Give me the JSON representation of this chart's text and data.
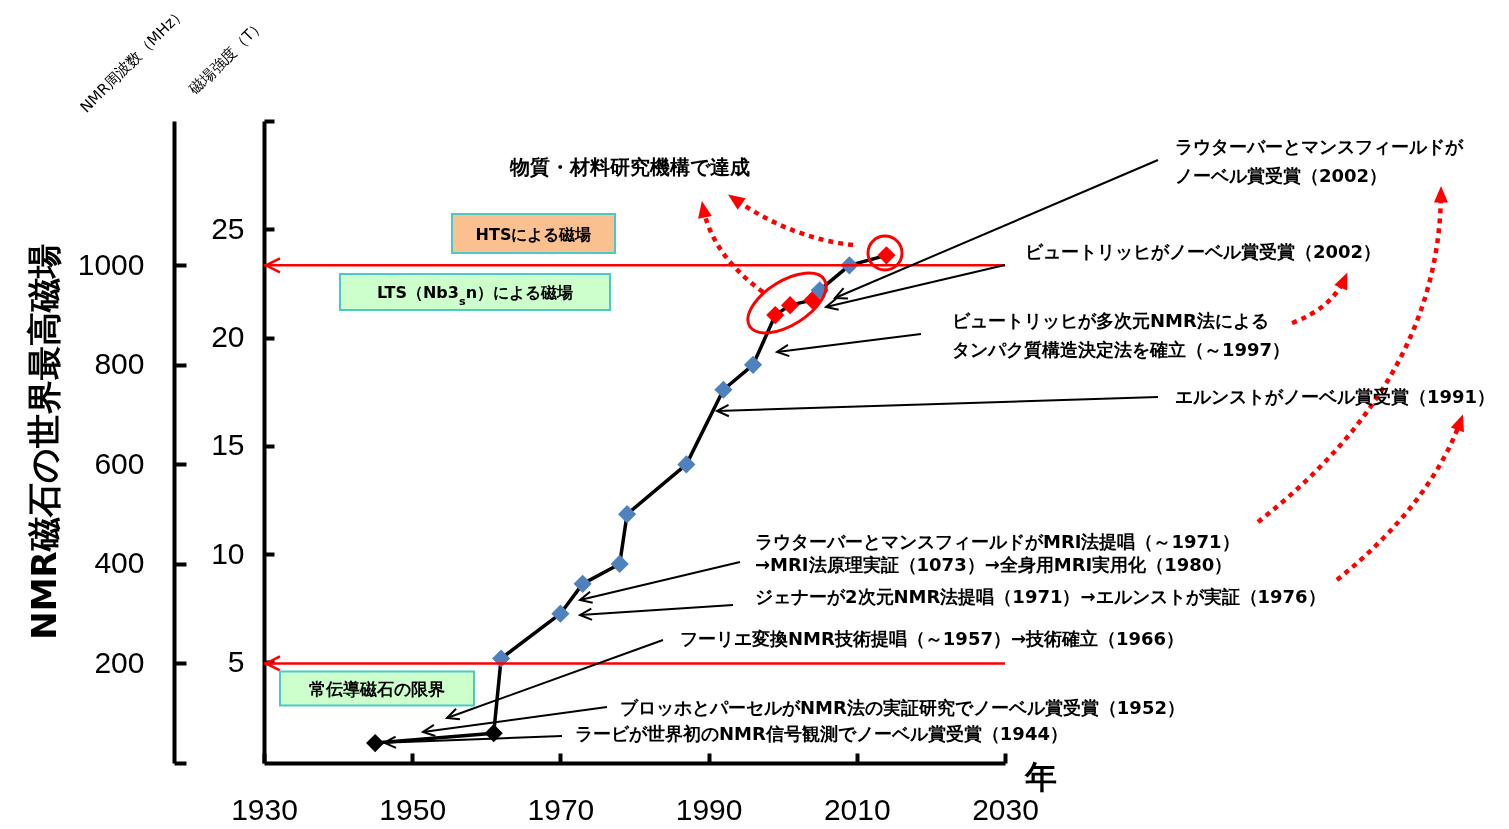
{
  "chart_data": {
    "type": "line",
    "title": "NMR磁石の世界最高磁場",
    "xlabel": "年",
    "ylabel": "NMR周波数（MHz）",
    "y2label": "磁場強度（T）",
    "xlim": [
      1930,
      2030
    ],
    "xticks": [
      1930,
      1950,
      1970,
      1990,
      2010,
      2030
    ],
    "ylim": [
      0,
      1290
    ],
    "yticks": [
      {
        "value": 0,
        "label": null
      },
      200,
      400,
      600,
      800,
      1000
    ],
    "y2lim": [
      0.35,
      30
    ],
    "y2ticks": [
      5,
      10,
      15,
      20,
      25,
      {
        "value": 30,
        "label": null
      }
    ],
    "marker": "diamond",
    "series": [
      {
        "color": "#000000",
        "x": [
          1945,
          1961,
          1962,
          1970,
          1973,
          1978,
          1979,
          1987,
          1992,
          1996,
          1999,
          2001,
          2004,
          2005,
          2009,
          2014
        ],
        "values": [
          40,
          60,
          210,
          300,
          360,
          400,
          500,
          600,
          750,
          800,
          900,
          920,
          930,
          950,
          1000,
          1020
        ],
        "colors": [
          "#000000",
          "#000000",
          "#4f81bd",
          "#4f81bd",
          "#4f81bd",
          "#4f81bd",
          "#4f81bd",
          "#4f81bd",
          "#4f81bd",
          "#4f81bd",
          "#ff0000",
          "#ff0000",
          "#ff0000",
          "#4f81bd",
          "#4f81bd",
          "#ff0000"
        ]
      }
    ],
    "ref_lines": [
      {
        "axis": "y",
        "value": 1000,
        "color": "#ff0000"
      },
      {
        "axis": "y",
        "value": 200,
        "color": "#ff0000",
        "label": "常伝導磁石の限界"
      }
    ],
    "annotations": [
      "物質・材料研究機構で達成",
      "HTSによる磁場",
      "LTS（Nb3$_{s}$n）による磁場",
      "ラウターバーとマンスフィールドがノーベル賞受賞（2002）",
      "ビュートリッヒがノーベル賞受賞（2002）",
      "ビュートリッヒが多次元NMR法によるタンパク質構造決定法を確立（～1997）",
      "エルンストがノーベル賞受賞（1991）",
      "ラウターバーとマンスフィールドがMRI法提唱（～1971）→MRI法原理実証（1073）→全身用MRI実用化（1980）",
      "ジェナーが2次元NMR法提唱（1971）→エルンストが実証（1976）",
      "フーリエ変換NMR技術提唱（～1957）→技術確立（1966）",
      "ブロッホとパーセルがNMR法の実証研究でノーベル賞受賞（1952）",
      {
        "text": "ラービが世界初のNMR信号観測でノーベル賞受賞（1944）",
        "x": 1945,
        "y": 40
      }
    ]
  }
}
